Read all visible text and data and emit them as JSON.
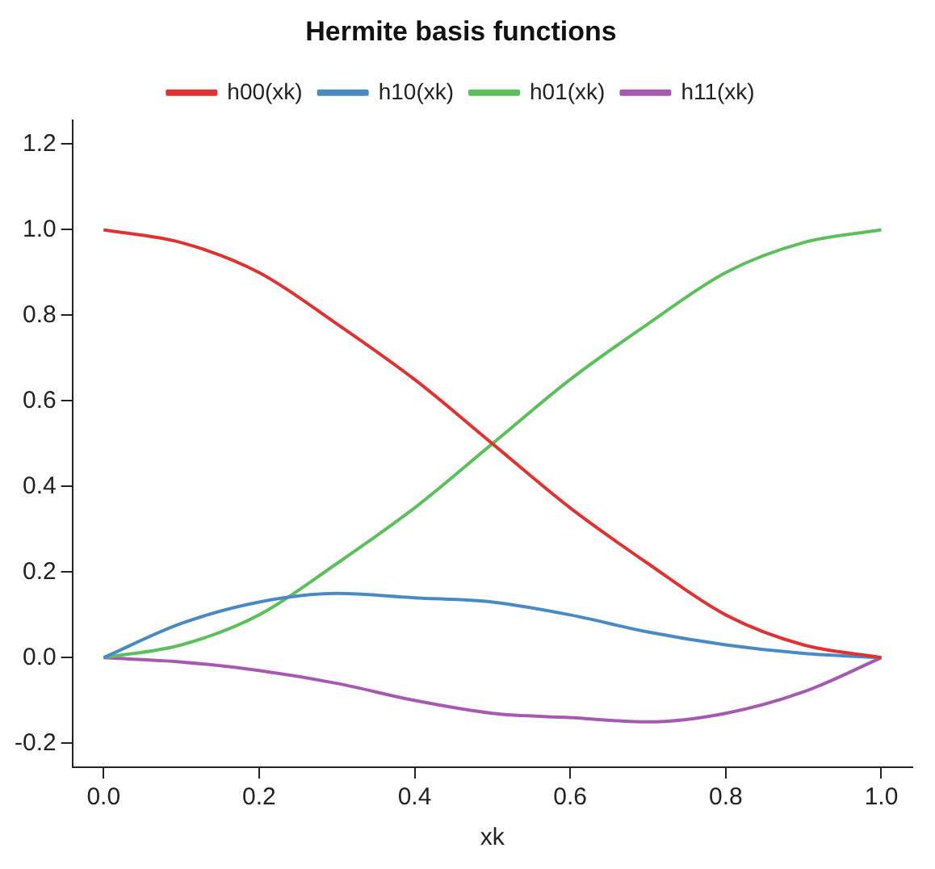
{
  "chart_data": {
    "type": "line",
    "title": "Hermite basis functions",
    "xlabel": "xk",
    "x": [
      0,
      0.1,
      0.2,
      0.3,
      0.4,
      0.5,
      0.6,
      0.7,
      0.8,
      0.9,
      1
    ],
    "series": [
      {
        "name": "h00(xk)",
        "color": "#dd3333",
        "values": [
          1,
          0.97,
          0.9,
          0.78,
          0.65,
          0.5,
          0.35,
          0.22,
          0.1,
          0.03,
          0
        ]
      },
      {
        "name": "h10(xk)",
        "color": "#4a8ac4",
        "values": [
          0,
          0.08,
          0.13,
          0.15,
          0.14,
          0.13,
          0.1,
          0.06,
          0.03,
          0.01,
          0
        ]
      },
      {
        "name": "h01(xk)",
        "color": "#5cbf5c",
        "values": [
          0,
          0.03,
          0.1,
          0.22,
          0.35,
          0.5,
          0.65,
          0.78,
          0.9,
          0.97,
          1
        ]
      },
      {
        "name": "h11(xk)",
        "color": "#a55ab0",
        "values": [
          0,
          -0.01,
          -0.03,
          -0.06,
          -0.1,
          -0.13,
          -0.14,
          -0.15,
          -0.13,
          -0.08,
          0
        ]
      }
    ],
    "xlim": [
      -0.04,
      1.04
    ],
    "ylim": [
      -0.256,
      1.256
    ],
    "xticks": [
      {
        "value": 0,
        "label": "0.0"
      },
      0.2,
      0.4,
      0.6,
      0.8,
      {
        "value": 1,
        "label": "1.0"
      }
    ],
    "yticks": [
      -0.2,
      {
        "value": 0,
        "label": "0.0"
      },
      0.2,
      0.4,
      0.6,
      0.8,
      {
        "value": 1,
        "label": "1.0"
      },
      1.2
    ],
    "grid": false,
    "legend": "top",
    "marker": "none",
    "line_style": "solid"
  }
}
